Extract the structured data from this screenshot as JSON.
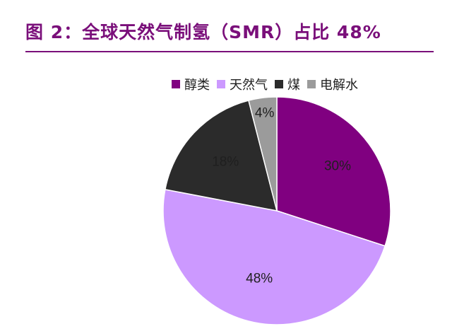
{
  "title": "图 2：全球天然气制氢（SMR）占比 48%",
  "chart_data": {
    "type": "pie",
    "categories": [
      "醇类",
      "天然气",
      "煤",
      "电解水"
    ],
    "values": [
      30,
      48,
      18,
      4
    ],
    "labels": [
      "30%",
      "48%",
      "18%",
      "4%"
    ],
    "colors": [
      "#800080",
      "#cc99ff",
      "#2b2b2b",
      "#9b9b9b"
    ],
    "legend_position": "top-right",
    "start_angle_deg": 0,
    "direction": "clockwise"
  }
}
